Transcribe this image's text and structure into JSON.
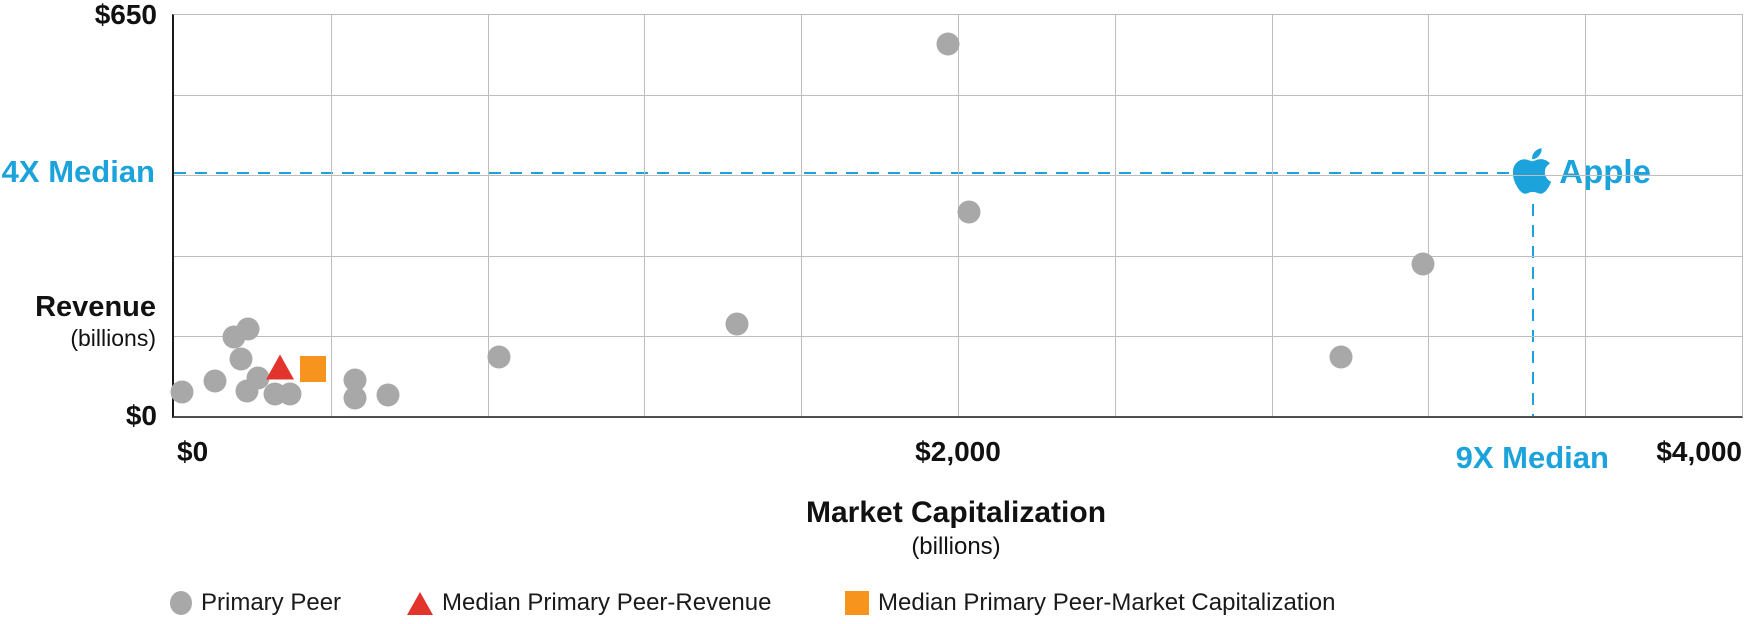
{
  "colors": {
    "peer_gray": "#A8A8A8",
    "median_red": "#E2342C",
    "median_orange": "#F7941E",
    "apple_blue": "#1CA3DC",
    "gridline": "#BDBDBD",
    "axis_dark": "#1a1a1a"
  },
  "chart_data": {
    "type": "scatter",
    "xlabel": "Market Capitalization",
    "xlabel_sub": "(billions)",
    "ylabel": "Revenue",
    "ylabel_sub": "(billions)",
    "xlim": [
      0,
      4000
    ],
    "ylim": [
      0,
      650
    ],
    "x_grid_step": 400,
    "y_grid_step": 130,
    "x_ticks": [
      {
        "value": 0,
        "label": "$0"
      },
      {
        "value": 2000,
        "label": "$2,000"
      },
      {
        "value": 4000,
        "label": "$4,000"
      }
    ],
    "y_ticks": [
      {
        "value": 650,
        "label": "$650"
      },
      {
        "value": 0,
        "label": "$0"
      }
    ],
    "series": [
      {
        "name": "Primary Peer",
        "marker": "circle",
        "points": [
          {
            "mc": 20,
            "rev": 39
          },
          {
            "mc": 104,
            "rev": 57
          },
          {
            "mc": 153,
            "rev": 128
          },
          {
            "mc": 189,
            "rev": 141
          },
          {
            "mc": 171,
            "rev": 92
          },
          {
            "mc": 186,
            "rev": 40
          },
          {
            "mc": 214,
            "rev": 61
          },
          {
            "mc": 257,
            "rev": 36
          },
          {
            "mc": 296,
            "rev": 36
          },
          {
            "mc": 461,
            "rev": 58
          },
          {
            "mc": 461,
            "rev": 29
          },
          {
            "mc": 545,
            "rev": 34
          },
          {
            "mc": 830,
            "rev": 95
          },
          {
            "mc": 1437,
            "rev": 149
          },
          {
            "mc": 1975,
            "rev": 603
          },
          {
            "mc": 2028,
            "rev": 330
          },
          {
            "mc": 2978,
            "rev": 95
          },
          {
            "mc": 3185,
            "rev": 246
          }
        ]
      },
      {
        "name": "Median Primary Peer-Revenue",
        "marker": "triangle",
        "points": [
          {
            "mc": 270,
            "rev": 79
          }
        ]
      },
      {
        "name": "Median Primary Peer-Market Capitalization",
        "marker": "square",
        "points": [
          {
            "mc": 354,
            "rev": 76
          }
        ]
      },
      {
        "name": "Apple",
        "marker": "apple-logo",
        "points": [
          {
            "mc": 3465,
            "rev": 395
          }
        ]
      }
    ],
    "annotations": [
      {
        "label": "4X Median",
        "type": "dashed-horizontal-line",
        "rev": 395
      },
      {
        "label": "9X Median",
        "type": "dashed-vertical-line",
        "mc": 3465
      }
    ]
  },
  "legend": {
    "items": [
      {
        "label": "Primary Peer",
        "marker": "circle"
      },
      {
        "label": "Median Primary Peer-Revenue",
        "marker": "triangle"
      },
      {
        "label": "Median Primary Peer-Market Capitalization",
        "marker": "square"
      }
    ]
  }
}
